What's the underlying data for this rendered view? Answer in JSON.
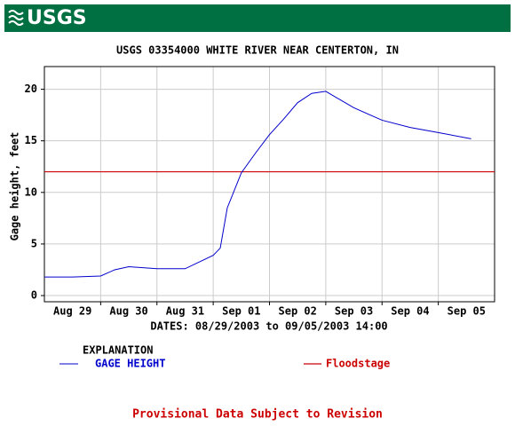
{
  "logo": "USGS",
  "chart_data": {
    "type": "line",
    "title": "USGS 03354000 WHITE RIVER NEAR CENTERTON, IN",
    "y_label": "Gage height, feet",
    "x_label": "DATES: 08/29/2003 to 09/05/2003 14:00",
    "ylim": [
      -0.6,
      22.2
    ],
    "yticks": [
      0,
      5,
      10,
      15,
      20
    ],
    "xlim": [
      "2003-08-29T00:00",
      "2003-09-06T00:00"
    ],
    "xticks": [
      {
        "value": "2003-08-29T12:00",
        "label": "Aug 29"
      },
      {
        "value": "2003-08-30T12:00",
        "label": "Aug 30"
      },
      {
        "value": "2003-08-31T12:00",
        "label": "Aug 31"
      },
      {
        "value": "2003-09-01T12:00",
        "label": "Sep 01"
      },
      {
        "value": "2003-09-02T12:00",
        "label": "Sep 02"
      },
      {
        "value": "2003-09-03T12:00",
        "label": "Sep 03"
      },
      {
        "value": "2003-09-04T12:00",
        "label": "Sep 04"
      },
      {
        "value": "2003-09-05T12:00",
        "label": "Sep 05"
      }
    ],
    "xgrid": [
      "2003-08-30T00:00",
      "2003-08-31T00:00",
      "2003-09-01T00:00",
      "2003-09-02T00:00",
      "2003-09-03T00:00",
      "2003-09-04T00:00",
      "2003-09-05T00:00"
    ],
    "grid": true,
    "legend_title": "EXPLANATION",
    "x": [
      "2003-08-29T00:00",
      "2003-08-29T12:00",
      "2003-08-30T00:00",
      "2003-08-30T06:00",
      "2003-08-30T12:00",
      "2003-08-31T00:00",
      "2003-08-31T12:00",
      "2003-09-01T00:00",
      "2003-09-01T03:00",
      "2003-09-01T06:00",
      "2003-09-01T12:00",
      "2003-09-01T18:00",
      "2003-09-02T00:00",
      "2003-09-02T06:00",
      "2003-09-02T12:00",
      "2003-09-02T18:00",
      "2003-09-03T00:00",
      "2003-09-03T06:00",
      "2003-09-03T12:00",
      "2003-09-04T00:00",
      "2003-09-04T12:00",
      "2003-09-05T00:00",
      "2003-09-05T14:00"
    ],
    "series": [
      {
        "name": "GAGE HEIGHT",
        "color": "#0000cc",
        "values": [
          1.8,
          1.8,
          1.9,
          2.5,
          2.8,
          2.6,
          2.6,
          3.9,
          4.6,
          8.5,
          11.9,
          13.8,
          15.6,
          17.1,
          18.7,
          19.6,
          19.8,
          19.0,
          18.2,
          17.0,
          16.3,
          15.8,
          15.2
        ]
      }
    ],
    "reference_lines": [
      {
        "name": "Floodstage",
        "value": 12,
        "color": "#cc0000"
      }
    ],
    "footnote": "Provisional Data Subject to Revision"
  }
}
